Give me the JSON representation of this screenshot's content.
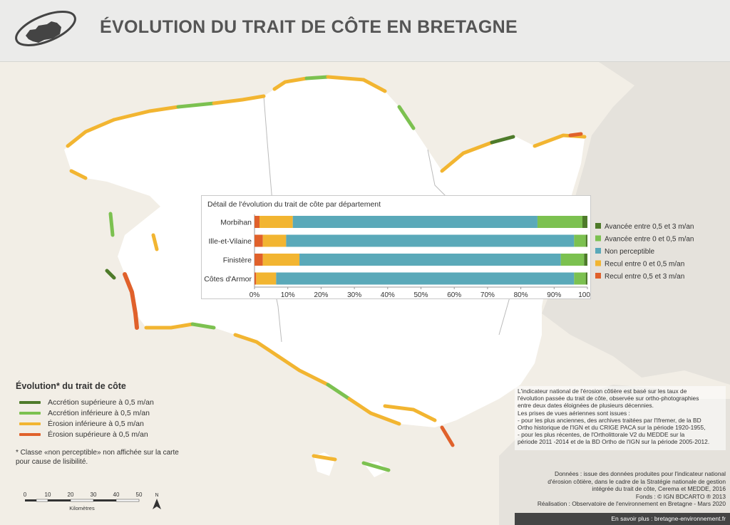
{
  "header": {
    "title": "ÉVOLUTION DU TRAIT DE CÔTE EN BRETAGNE"
  },
  "colors": {
    "accretion_high": "#4e7b2a",
    "accretion_low": "#7cc150",
    "non_perceptible": "#5aa9b9",
    "erosion_low": "#f2b531",
    "erosion_high": "#e0612b",
    "land": "#ffffff",
    "sea": "#f2eee6",
    "neighbour": "#e5e2dc"
  },
  "chart_data": {
    "type": "bar",
    "orientation": "horizontal-stacked",
    "title": "Détail de l'évolution du trait de côte par département",
    "categories": [
      "Morbihan",
      "Ille-et-Vilaine",
      "Finistère",
      "Côtes d'Armor"
    ],
    "x_ticks": [
      "0%",
      "10%",
      "20%",
      "30%",
      "40%",
      "50%",
      "60%",
      "70%",
      "80%",
      "90%",
      "100%"
    ],
    "xlim": [
      0,
      100
    ],
    "legend_position": "right",
    "series": [
      {
        "name": "Recul entre 0,5 et 3 m/an",
        "color": "#e0612b",
        "values": [
          1.5,
          2.5,
          2.5,
          0.5
        ]
      },
      {
        "name": "Recul entre 0 et 0,5 m/an",
        "color": "#f2b531",
        "values": [
          10,
          7,
          11,
          6
        ]
      },
      {
        "name": "Non perceptible",
        "color": "#5aa9b9",
        "values": [
          73.5,
          86.5,
          78.5,
          89.5
        ]
      },
      {
        "name": "Avancée entre 0 et 0,5 m/an",
        "color": "#7cc150",
        "values": [
          13.5,
          3.5,
          7,
          3.5
        ]
      },
      {
        "name": "Avancée entre 0,5 et 3 m/an",
        "color": "#4e7b2a",
        "values": [
          1.5,
          0.5,
          1,
          0.5
        ]
      }
    ],
    "legend_order": [
      "Avancée entre 0,5 et 3 m/an",
      "Avancée entre 0 et 0,5 m/an",
      "Non perceptible",
      "Recul entre 0 et 0,5 m/an",
      "Recul entre 0,5 et 3 m/an"
    ]
  },
  "legend": {
    "title": "Évolution* du trait de côte",
    "items": [
      {
        "label": "Accrétion supérieure à 0,5 m/an",
        "color": "#4e7b2a"
      },
      {
        "label": "Accrétion inférieure à 0,5 m/an",
        "color": "#7cc150"
      },
      {
        "label": "Érosion inférieure à 0,5 m/an",
        "color": "#f2b531"
      },
      {
        "label": "Érosion supérieure à 0,5 m/an",
        "color": "#e0612b"
      }
    ],
    "note_line1": "* Classe «non perceptible» non affichée sur la carte",
    "note_line2": "pour cause de lisibilité."
  },
  "scale": {
    "ticks": [
      "0",
      "10",
      "20",
      "30",
      "40",
      "50"
    ],
    "unit": "Kilomètres",
    "north": "N"
  },
  "info": {
    "lines": [
      "L'indicateur national de l'érosion côtière est basé sur les taux de",
      "l'évolution passée du trait de côte, observée sur ortho-photographies",
      "entre deux dates éloignées de plusieurs décennies.",
      "Les prises de vues aériennes sont issues :",
      "- pour les plus anciennes, des archives traitées par l'Ifremer, de la BD",
      "Ortho historique de l'IGN et du CRIGE PACA sur la période 1920-1955,",
      "- pour les plus récentes, de l'Ortholittorale V2 du MEDDE sur la",
      "période 2011 -2014 et de la BD Ortho de l'IGN sur la période 2005-2012."
    ]
  },
  "credits": {
    "lines": [
      "Données : issue des données produites pour l'indicateur national",
      "d'érosion côtière, dans le cadre de la Stratégie nationale de gestion",
      "intégrée du trait de côte, Cerema et MEDDE, 2016",
      "Fonds : © IGN BDCARTO ® 2013",
      "Réalisation :  Observatoire de l'environnement en Bretagne - Mars 2020"
    ],
    "more": "En savoir plus : bretagne-environnement.fr"
  }
}
